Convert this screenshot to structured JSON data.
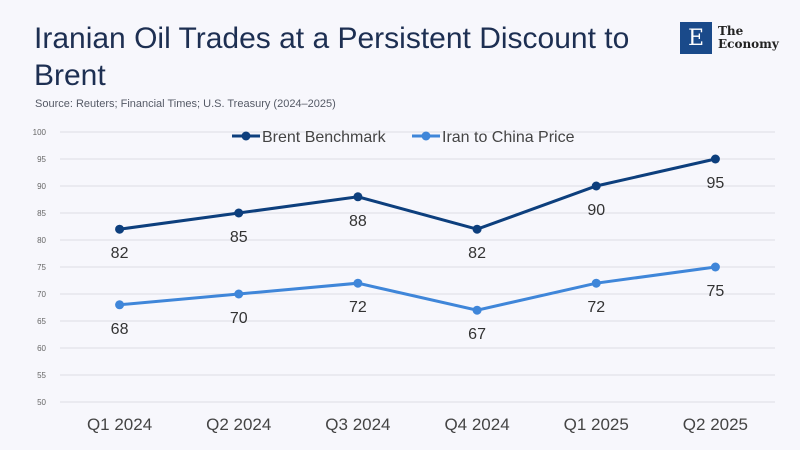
{
  "header": {
    "title": "Iranian Oil Trades at a Persistent Discount to Brent",
    "source": "Source:  Reuters; Financial Times; U.S. Treasury (2024–2025)",
    "logo_letter": "E",
    "logo_line1": "The",
    "logo_line2": "Economy"
  },
  "chart_data": {
    "type": "line",
    "title": "Iranian Oil Trades at a Persistent Discount to Brent",
    "categories": [
      "Q1 2024",
      "Q2 2024",
      "Q3 2024",
      "Q4 2024",
      "Q1 2025",
      "Q2 2025"
    ],
    "ylim": [
      50,
      100
    ],
    "yticks": [
      50,
      55,
      60,
      65,
      70,
      75,
      80,
      85,
      90,
      95,
      100
    ],
    "grid": true,
    "legend": "top",
    "series": [
      {
        "name": "Brent Benchmark",
        "values": [
          82,
          85,
          88,
          82,
          90,
          95
        ],
        "color": "#0d3f7d"
      },
      {
        "name": "Iran to China Price",
        "values": [
          68,
          70,
          72,
          67,
          72,
          75
        ],
        "color": "#3f86d9"
      }
    ]
  }
}
